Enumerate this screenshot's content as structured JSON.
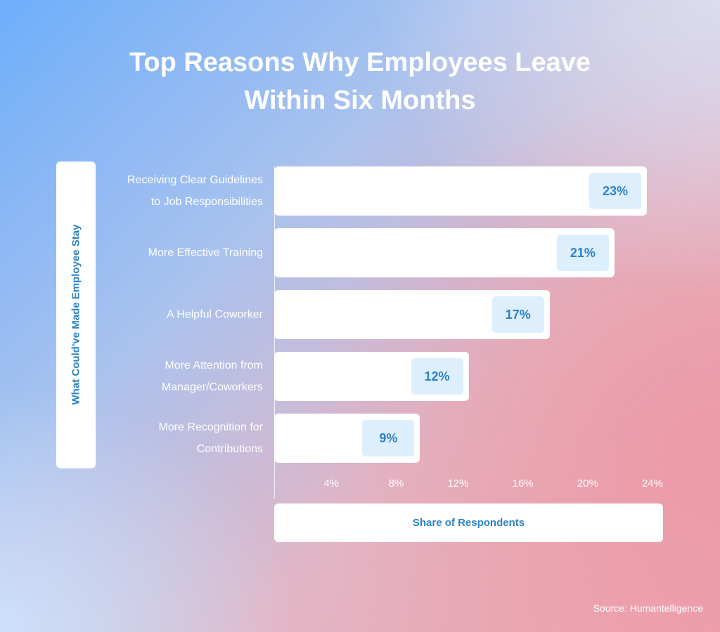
{
  "chart_data": {
    "type": "bar",
    "orientation": "horizontal",
    "title": "Top Reasons Why Employees Leave Within Six Months",
    "categories": [
      "Receiving Clear Guidelines\nto Job Responsibilities",
      "More Effective Training",
      "A Helpful Coworker",
      "More Attention from\nManager/Coworkers",
      "More Recognition for\nContributions"
    ],
    "values": [
      23,
      21,
      17,
      12,
      9
    ],
    "value_labels": [
      "23%",
      "21%",
      "17%",
      "12%",
      "9%"
    ],
    "color": "#ffffff",
    "label_color": "#2b83c8",
    "y_axis_label": "What Could've Made Employee Stay",
    "x_axis_label": "Share of Respondents",
    "xlim": [
      0,
      24
    ],
    "xticks": [
      {
        "value": 4,
        "label": "4%"
      },
      {
        "value": 8,
        "label": "8%"
      },
      {
        "value": 12,
        "label": "12%"
      },
      {
        "value": 16,
        "label": "16%"
      },
      {
        "value": 20,
        "label": "20%"
      },
      {
        "value": 24,
        "label": "24%"
      }
    ],
    "grid": false,
    "source": "Source: Humantelligence"
  }
}
